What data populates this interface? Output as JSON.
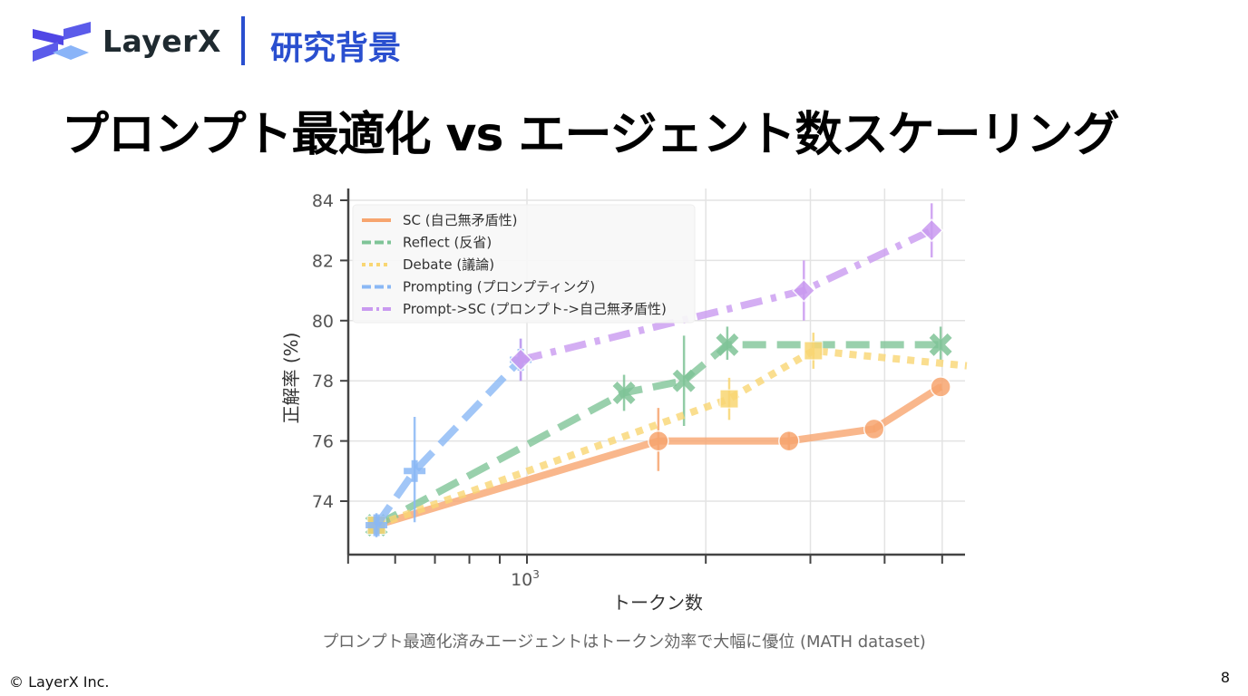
{
  "header": {
    "brand": "LayerX",
    "section": "研究背景"
  },
  "slide": {
    "title": "プロンプト最適化 vs エージェント数スケーリング",
    "caption": "プロンプト最適化済みエージェントはトークン効率で大幅に優位 (MATH dataset)",
    "copyright": "© LayerX Inc.",
    "page_number": "8"
  },
  "chart_data": {
    "type": "line",
    "title": "",
    "xlabel": "トークン数",
    "ylabel": "正解率 (%)",
    "xscale": "log",
    "xlim": [
      500,
      5500
    ],
    "ylim": [
      72.2,
      84.4
    ],
    "yticks": [
      74,
      76,
      78,
      80,
      82,
      84
    ],
    "xticks_major": [
      {
        "value": 1000,
        "label": "10",
        "sup": "3"
      }
    ],
    "xticks_minor": [
      500,
      600,
      700,
      800,
      900,
      2000,
      3000,
      4000,
      5000
    ],
    "grid": true,
    "legend_position": "top-left",
    "series": [
      {
        "name": "SC (自己無矛盾性)",
        "color": "#f7a56f",
        "style": "solid",
        "marker": "circle",
        "points": [
          {
            "x": 558,
            "y": 73.2,
            "err": [
              73.0,
              73.4
            ]
          },
          {
            "x": 1664,
            "y": 76.0,
            "err": [
              75.0,
              77.1
            ]
          },
          {
            "x": 2760,
            "y": 76.0,
            "err": [
              75.7,
              76.3
            ]
          },
          {
            "x": 3840,
            "y": 76.4,
            "err": [
              76.3,
              76.5
            ]
          },
          {
            "x": 4970,
            "y": 77.8,
            "err": [
              77.7,
              77.9
            ]
          }
        ]
      },
      {
        "name": "Reflect (反省)",
        "color": "#7fc497",
        "style": "dashed",
        "marker": "x",
        "points": [
          {
            "x": 558,
            "y": 73.2,
            "err": [
              73.0,
              73.4
            ]
          },
          {
            "x": 1457,
            "y": 77.6,
            "err": [
              77.0,
              78.2
            ]
          },
          {
            "x": 1838,
            "y": 78.0,
            "err": [
              76.5,
              79.5
            ]
          },
          {
            "x": 2174,
            "y": 79.2,
            "err": [
              78.7,
              79.8
            ]
          },
          {
            "x": 4970,
            "y": 79.2,
            "err": [
              78.7,
              79.8
            ]
          }
        ]
      },
      {
        "name": "Debate (議論)",
        "color": "#f9d673",
        "style": "dotted",
        "marker": "square",
        "points": [
          {
            "x": 558,
            "y": 73.2,
            "err": [
              73.0,
              73.4
            ]
          },
          {
            "x": 2190,
            "y": 77.4,
            "err": [
              76.7,
              78.1
            ]
          },
          {
            "x": 3035,
            "y": 79.0,
            "err": [
              78.4,
              79.6
            ]
          },
          {
            "x": 5500,
            "y": 78.5,
            "err": null
          }
        ]
      },
      {
        "name": "Prompting (プロンプティング)",
        "color": "#8ab8f5",
        "style": "dashed",
        "marker": "plus",
        "points": [
          {
            "x": 558,
            "y": 73.2,
            "err": [
              72.8,
              73.6
            ]
          },
          {
            "x": 647,
            "y": 75.0,
            "err": [
              73.3,
              76.8
            ]
          },
          {
            "x": 976,
            "y": 78.7,
            "err": [
              78.0,
              79.4
            ]
          }
        ]
      },
      {
        "name": "Prompt->SC (プロンプト->自己無矛盾性)",
        "color": "#c99af0",
        "style": "dashdot",
        "marker": "diamond",
        "points": [
          {
            "x": 976,
            "y": 78.7,
            "err": [
              78.0,
              79.4
            ]
          },
          {
            "x": 2925,
            "y": 81.0,
            "err": [
              80.0,
              82.0
            ]
          },
          {
            "x": 4800,
            "y": 83.0,
            "err": [
              82.1,
              83.9
            ]
          }
        ]
      }
    ]
  }
}
